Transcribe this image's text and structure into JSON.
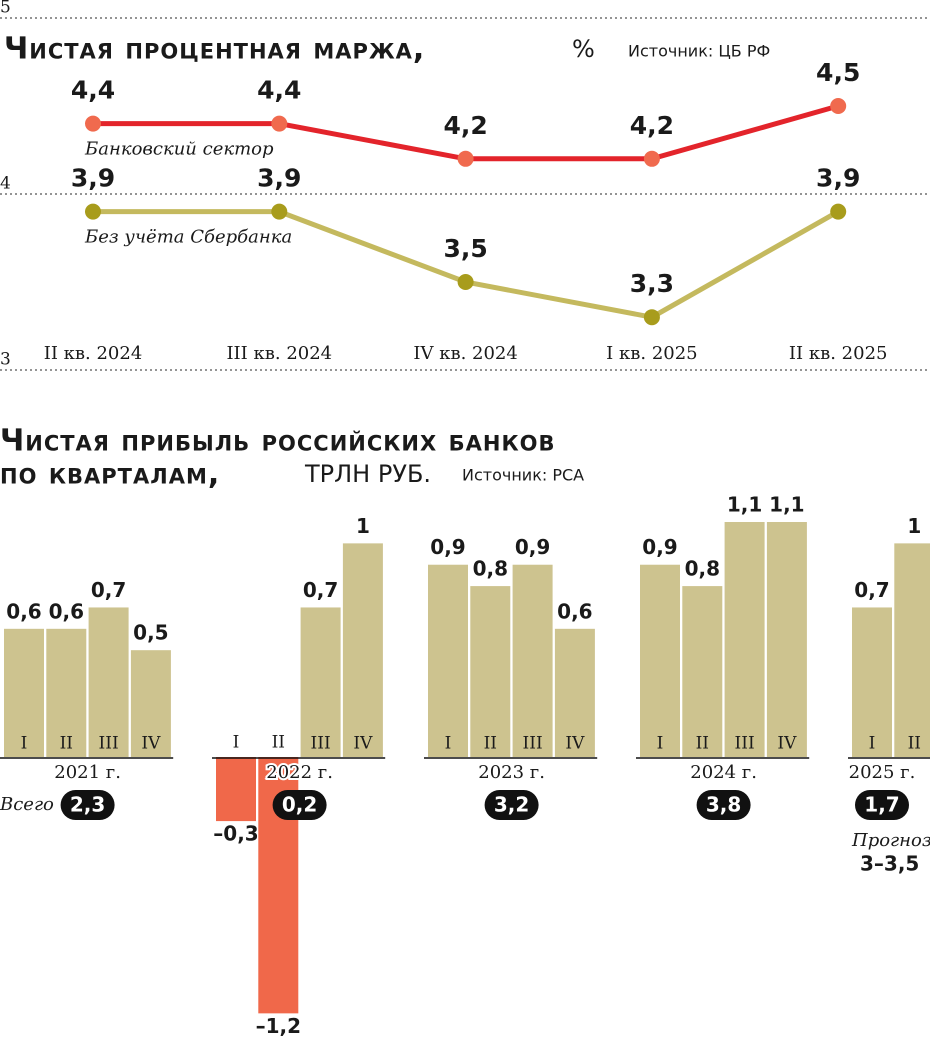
{
  "chart_data": [
    {
      "type": "line",
      "title": "Чистая процентная маржа,",
      "unit": "%",
      "source": "Источник: ЦБ РФ",
      "categories": [
        "II кв. 2024",
        "III кв. 2024",
        "IV кв. 2024",
        "I кв. 2025",
        "II кв. 2025"
      ],
      "series": [
        {
          "name": "Банковский сектор",
          "color": "#e3242b",
          "marker_color": "#f06a4e",
          "values": [
            4.4,
            4.4,
            4.2,
            4.2,
            4.5
          ],
          "value_labels": [
            "4,4",
            "4,4",
            "4,2",
            "4,2",
            "4,5"
          ]
        },
        {
          "name": "Без учёта Сбербанка",
          "color": "#c4b95e",
          "marker_color": "#a89c1c",
          "values": [
            3.9,
            3.9,
            3.5,
            3.3,
            3.9
          ],
          "value_labels": [
            "3,9",
            "3,9",
            "3,5",
            "3,3",
            "3,9"
          ]
        }
      ],
      "ylim": [
        3,
        5
      ],
      "yticks": [
        3,
        4,
        5
      ],
      "grid": true
    },
    {
      "type": "grouped-bar",
      "title": [
        "Чистая прибыль российских банков",
        "по кварталам,"
      ],
      "unit": "ТРЛН РУБ.",
      "source": "Источник: РСА",
      "categories": [
        "I",
        "II",
        "III",
        "IV"
      ],
      "positive_color": "#cdc38f",
      "negative_color": "#f0684a",
      "total_caption": "Всего",
      "groups": [
        {
          "name": "2021 г.",
          "values": [
            0.6,
            0.6,
            0.7,
            0.5
          ],
          "value_labels": [
            "0,6",
            "0,6",
            "0,7",
            "0,5"
          ],
          "total": 2.3,
          "total_label": "2,3"
        },
        {
          "name": "2022 г.",
          "values": [
            -0.3,
            -1.2,
            0.7,
            1
          ],
          "value_labels": [
            "–0,3",
            "–1,2",
            "0,7",
            "1"
          ],
          "total": 0.2,
          "total_label": "0,2"
        },
        {
          "name": "2023 г.",
          "values": [
            0.9,
            0.8,
            0.9,
            0.6
          ],
          "value_labels": [
            "0,9",
            "0,8",
            "0,9",
            "0,6"
          ],
          "total": 3.2,
          "total_label": "3,2"
        },
        {
          "name": "2024 г.",
          "values": [
            0.9,
            0.8,
            1.1,
            1.1
          ],
          "value_labels": [
            "0,9",
            "0,8",
            "1,1",
            "1,1"
          ],
          "total": 3.8,
          "total_label": "3,8"
        },
        {
          "name": "2025 г.",
          "values": [
            0.7,
            1,
            null,
            null
          ],
          "value_labels": [
            "0,7",
            "1",
            null,
            null
          ],
          "total": 1.7,
          "total_label": "1,7"
        }
      ],
      "forecast": {
        "label": "Прогноз",
        "value_label": "3–3,5"
      }
    }
  ]
}
